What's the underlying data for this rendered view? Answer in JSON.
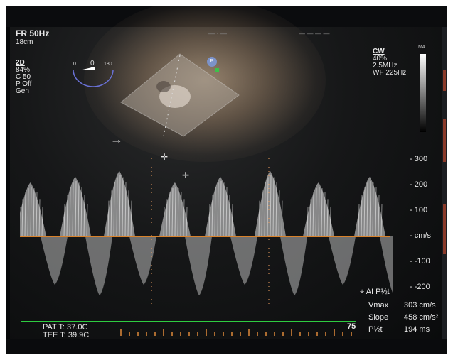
{
  "header": {
    "frame_rate": "FR 50Hz",
    "depth": "18cm",
    "top_label_left": "— · —",
    "top_label_right": "— — — —"
  },
  "mode_2d": {
    "title": "2D",
    "gain": "84%",
    "compress": "C 50",
    "power": "P Off",
    "preset": "Gen"
  },
  "mode_cw": {
    "title": "CW",
    "gain": "40%",
    "frequency": "2.5MHz",
    "wall_filter": "WF 225Hz",
    "probe_label": "M4"
  },
  "sector_gauge": {
    "left": "0",
    "mid": "0",
    "right": "180"
  },
  "probe_marker": "P",
  "velocity_scale": {
    "ticks": [
      "300",
      "200",
      "100",
      "cm/s",
      "-100",
      "-200"
    ]
  },
  "measurement": {
    "title": "AI P½t",
    "rows": [
      {
        "key": "Vmax",
        "value": "303 cm/s"
      },
      {
        "key": "Slope",
        "value": "458 cm/s²"
      },
      {
        "key": "P½t",
        "value": "194 ms"
      }
    ]
  },
  "footer": {
    "pat_t": "PAT T: 37.0C",
    "tee_t": "TEE T: 39.9C",
    "sweep": "75"
  },
  "colors": {
    "baseline": "#d9822b",
    "ecg": "#2ecc40",
    "spectrum": "#e8e8e8"
  }
}
